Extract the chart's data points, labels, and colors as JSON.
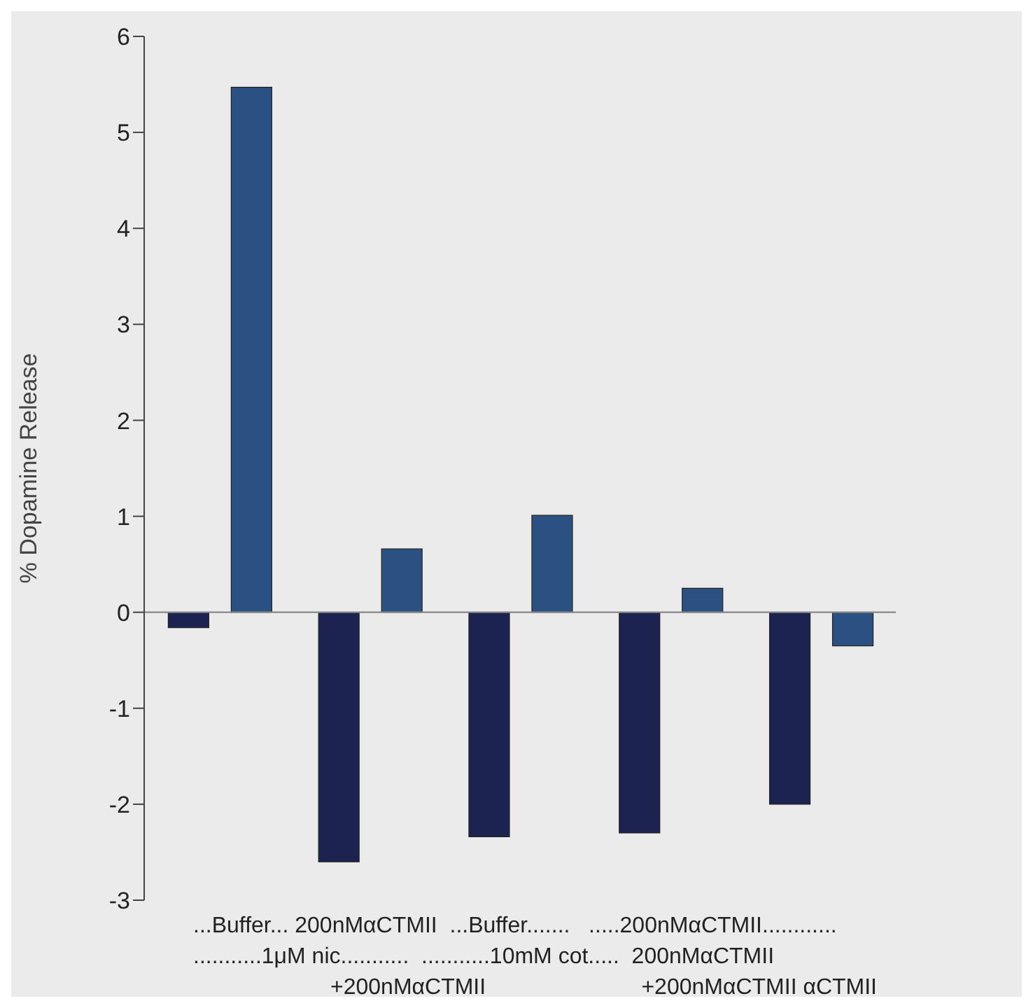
{
  "chart_data": {
    "type": "bar",
    "ylabel": "% Dopamine Release",
    "categories": [
      null,
      null,
      null,
      null,
      null
    ],
    "series": [
      {
        "color": "#1c2350",
        "values": [
          -0.16,
          -2.6,
          -2.34,
          -2.3,
          -2.0
        ]
      },
      {
        "color": "#2b5182",
        "values": [
          5.47,
          0.66,
          1.01,
          0.25,
          -0.35
        ]
      }
    ],
    "ylim": [
      -3,
      6
    ],
    "yticks": [
      -3,
      -2,
      -1,
      0,
      1,
      2,
      3,
      4,
      5,
      6
    ],
    "legend": false,
    "ref_lines": [
      {
        "axis": "y",
        "value": 0,
        "color": "#888888"
      }
    ],
    "annotations": [
      "...Buffer... 200nMαCTMII  ...Buffer.......   .....200nMαCTMII............",
      "...........1μM nic...........  ...........10mM cot.....  200nMαCTMII",
      "+200nMαCTMII                         +200nMαCTMII αCTMII"
    ]
  }
}
